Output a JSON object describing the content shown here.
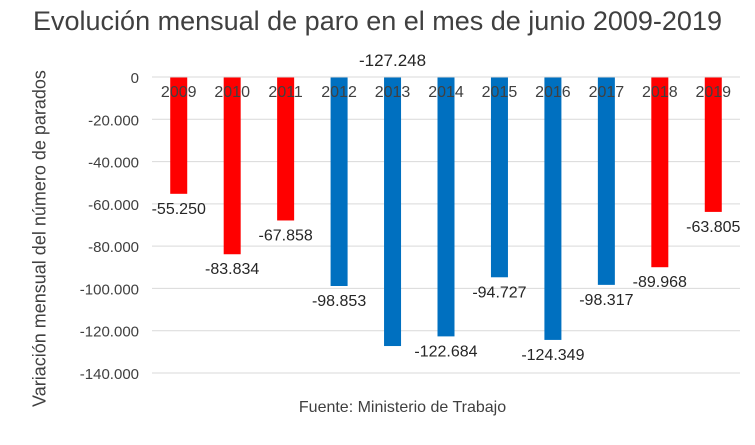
{
  "chart_data": {
    "type": "bar",
    "title": "Evolución mensual de paro en el mes de junio 2009-2019",
    "xlabel": "",
    "ylabel": "Variación mensual del número de parados",
    "source": "Fuente: Ministerio de Trabajo",
    "ylim": [
      -140000,
      0
    ],
    "yticks": [
      0,
      -20000,
      -40000,
      -60000,
      -80000,
      -100000,
      -120000,
      -140000
    ],
    "ytick_labels": [
      "0",
      "-20.000",
      "-40.000",
      "-60.000",
      "-80.000",
      "-100.000",
      "-120.000",
      "-140.000"
    ],
    "categories": [
      "2009",
      "2010",
      "2011",
      "2012",
      "2013",
      "2014",
      "2015",
      "2016",
      "2017",
      "2018",
      "2019"
    ],
    "values": [
      -55250,
      -83834,
      -67858,
      -98853,
      -127248,
      -122684,
      -94727,
      -124349,
      -98317,
      -89968,
      -63805
    ],
    "data_labels": [
      "-55.250",
      "-83.834",
      "-67.858",
      "-98.853",
      "-127.248",
      "-122.684",
      "-94.727",
      "-124.349",
      "-98.317",
      "-89.968",
      "-63.805"
    ],
    "colors": [
      "#ff0000",
      "#ff0000",
      "#ff0000",
      "#0070c0",
      "#0070c0",
      "#0070c0",
      "#0070c0",
      "#0070c0",
      "#0070c0",
      "#ff0000",
      "#ff0000"
    ],
    "grid": true,
    "legend": "none"
  }
}
